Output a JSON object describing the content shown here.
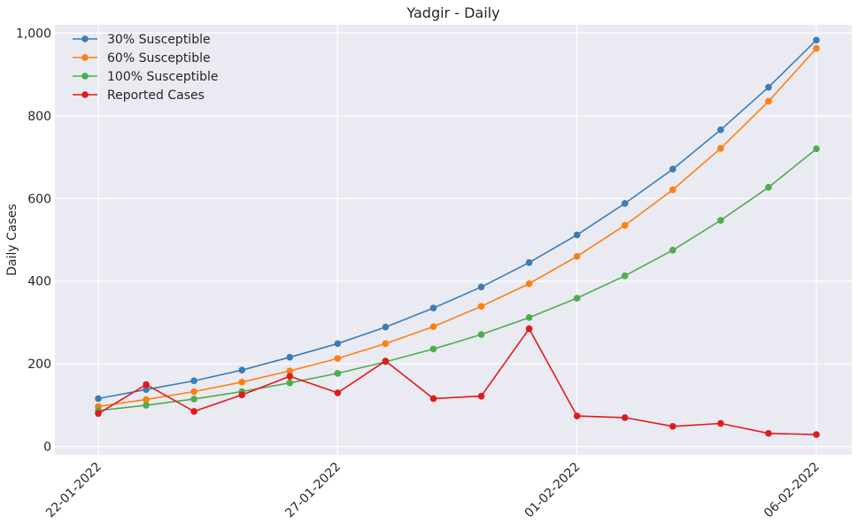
{
  "chart_data": {
    "type": "line",
    "title": "Yadgir - Daily",
    "xlabel": "",
    "ylabel": "Daily Cases",
    "x": [
      "2022-01-22",
      "2022-01-23",
      "2022-01-24",
      "2022-01-25",
      "2022-01-26",
      "2022-01-27",
      "2022-01-28",
      "2022-01-29",
      "2022-01-30",
      "2022-01-31",
      "2022-02-01",
      "2022-02-02",
      "2022-02-03",
      "2022-02-04",
      "2022-02-05",
      "2022-02-06"
    ],
    "xticks": [
      "22-01-2022",
      "27-01-2022",
      "01-02-2022",
      "06-02-2022"
    ],
    "yticks": [
      "0",
      "200",
      "400",
      "600",
      "800",
      "1,000"
    ],
    "ylim": [
      -20,
      1020
    ],
    "grid": true,
    "legend_position": "top-left",
    "series": [
      {
        "name": "30% Susceptible",
        "color": "#3a7db8",
        "values": [
          116,
          138,
          159,
          185,
          216,
          249,
          289,
          335,
          386,
          445,
          512,
          588,
          671,
          766,
          869,
          983
        ]
      },
      {
        "name": "60% Susceptible",
        "color": "#ff7f0e",
        "values": [
          97,
          114,
          133,
          156,
          183,
          213,
          249,
          290,
          339,
          394,
          460,
          535,
          621,
          721,
          835,
          963
        ]
      },
      {
        "name": "100% Susceptible",
        "color": "#4cae4c",
        "values": [
          87,
          100,
          115,
          133,
          154,
          177,
          205,
          236,
          271,
          312,
          359,
          413,
          475,
          547,
          627,
          720
        ]
      },
      {
        "name": "Reported Cases",
        "color": "#e31a1c",
        "values": [
          80,
          150,
          85,
          125,
          170,
          130,
          207,
          116,
          122,
          285,
          74,
          70,
          49,
          56,
          32,
          29
        ]
      }
    ]
  }
}
